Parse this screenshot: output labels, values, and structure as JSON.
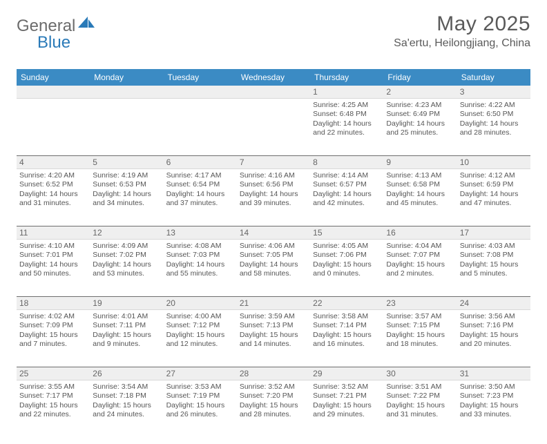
{
  "brand": {
    "general": "General",
    "blue": "Blue"
  },
  "title": "May 2025",
  "location": "Sa'ertu, Heilongjiang, China",
  "colors": {
    "header_bg": "#3b8bc4",
    "header_text": "#ffffff",
    "daynum_bg": "#efefef",
    "text": "#555555",
    "rule": "#6e6e6e"
  },
  "weekdays": [
    "Sunday",
    "Monday",
    "Tuesday",
    "Wednesday",
    "Thursday",
    "Friday",
    "Saturday"
  ],
  "weeks": [
    {
      "nums": [
        "",
        "",
        "",
        "",
        "1",
        "2",
        "3"
      ],
      "cells": [
        null,
        null,
        null,
        null,
        {
          "sunrise": "Sunrise: 4:25 AM",
          "sunset": "Sunset: 6:48 PM",
          "d1": "Daylight: 14 hours",
          "d2": "and 22 minutes."
        },
        {
          "sunrise": "Sunrise: 4:23 AM",
          "sunset": "Sunset: 6:49 PM",
          "d1": "Daylight: 14 hours",
          "d2": "and 25 minutes."
        },
        {
          "sunrise": "Sunrise: 4:22 AM",
          "sunset": "Sunset: 6:50 PM",
          "d1": "Daylight: 14 hours",
          "d2": "and 28 minutes."
        }
      ]
    },
    {
      "nums": [
        "4",
        "5",
        "6",
        "7",
        "8",
        "9",
        "10"
      ],
      "cells": [
        {
          "sunrise": "Sunrise: 4:20 AM",
          "sunset": "Sunset: 6:52 PM",
          "d1": "Daylight: 14 hours",
          "d2": "and 31 minutes."
        },
        {
          "sunrise": "Sunrise: 4:19 AM",
          "sunset": "Sunset: 6:53 PM",
          "d1": "Daylight: 14 hours",
          "d2": "and 34 minutes."
        },
        {
          "sunrise": "Sunrise: 4:17 AM",
          "sunset": "Sunset: 6:54 PM",
          "d1": "Daylight: 14 hours",
          "d2": "and 37 minutes."
        },
        {
          "sunrise": "Sunrise: 4:16 AM",
          "sunset": "Sunset: 6:56 PM",
          "d1": "Daylight: 14 hours",
          "d2": "and 39 minutes."
        },
        {
          "sunrise": "Sunrise: 4:14 AM",
          "sunset": "Sunset: 6:57 PM",
          "d1": "Daylight: 14 hours",
          "d2": "and 42 minutes."
        },
        {
          "sunrise": "Sunrise: 4:13 AM",
          "sunset": "Sunset: 6:58 PM",
          "d1": "Daylight: 14 hours",
          "d2": "and 45 minutes."
        },
        {
          "sunrise": "Sunrise: 4:12 AM",
          "sunset": "Sunset: 6:59 PM",
          "d1": "Daylight: 14 hours",
          "d2": "and 47 minutes."
        }
      ]
    },
    {
      "nums": [
        "11",
        "12",
        "13",
        "14",
        "15",
        "16",
        "17"
      ],
      "cells": [
        {
          "sunrise": "Sunrise: 4:10 AM",
          "sunset": "Sunset: 7:01 PM",
          "d1": "Daylight: 14 hours",
          "d2": "and 50 minutes."
        },
        {
          "sunrise": "Sunrise: 4:09 AM",
          "sunset": "Sunset: 7:02 PM",
          "d1": "Daylight: 14 hours",
          "d2": "and 53 minutes."
        },
        {
          "sunrise": "Sunrise: 4:08 AM",
          "sunset": "Sunset: 7:03 PM",
          "d1": "Daylight: 14 hours",
          "d2": "and 55 minutes."
        },
        {
          "sunrise": "Sunrise: 4:06 AM",
          "sunset": "Sunset: 7:05 PM",
          "d1": "Daylight: 14 hours",
          "d2": "and 58 minutes."
        },
        {
          "sunrise": "Sunrise: 4:05 AM",
          "sunset": "Sunset: 7:06 PM",
          "d1": "Daylight: 15 hours",
          "d2": "and 0 minutes."
        },
        {
          "sunrise": "Sunrise: 4:04 AM",
          "sunset": "Sunset: 7:07 PM",
          "d1": "Daylight: 15 hours",
          "d2": "and 2 minutes."
        },
        {
          "sunrise": "Sunrise: 4:03 AM",
          "sunset": "Sunset: 7:08 PM",
          "d1": "Daylight: 15 hours",
          "d2": "and 5 minutes."
        }
      ]
    },
    {
      "nums": [
        "18",
        "19",
        "20",
        "21",
        "22",
        "23",
        "24"
      ],
      "cells": [
        {
          "sunrise": "Sunrise: 4:02 AM",
          "sunset": "Sunset: 7:09 PM",
          "d1": "Daylight: 15 hours",
          "d2": "and 7 minutes."
        },
        {
          "sunrise": "Sunrise: 4:01 AM",
          "sunset": "Sunset: 7:11 PM",
          "d1": "Daylight: 15 hours",
          "d2": "and 9 minutes."
        },
        {
          "sunrise": "Sunrise: 4:00 AM",
          "sunset": "Sunset: 7:12 PM",
          "d1": "Daylight: 15 hours",
          "d2": "and 12 minutes."
        },
        {
          "sunrise": "Sunrise: 3:59 AM",
          "sunset": "Sunset: 7:13 PM",
          "d1": "Daylight: 15 hours",
          "d2": "and 14 minutes."
        },
        {
          "sunrise": "Sunrise: 3:58 AM",
          "sunset": "Sunset: 7:14 PM",
          "d1": "Daylight: 15 hours",
          "d2": "and 16 minutes."
        },
        {
          "sunrise": "Sunrise: 3:57 AM",
          "sunset": "Sunset: 7:15 PM",
          "d1": "Daylight: 15 hours",
          "d2": "and 18 minutes."
        },
        {
          "sunrise": "Sunrise: 3:56 AM",
          "sunset": "Sunset: 7:16 PM",
          "d1": "Daylight: 15 hours",
          "d2": "and 20 minutes."
        }
      ]
    },
    {
      "nums": [
        "25",
        "26",
        "27",
        "28",
        "29",
        "30",
        "31"
      ],
      "cells": [
        {
          "sunrise": "Sunrise: 3:55 AM",
          "sunset": "Sunset: 7:17 PM",
          "d1": "Daylight: 15 hours",
          "d2": "and 22 minutes."
        },
        {
          "sunrise": "Sunrise: 3:54 AM",
          "sunset": "Sunset: 7:18 PM",
          "d1": "Daylight: 15 hours",
          "d2": "and 24 minutes."
        },
        {
          "sunrise": "Sunrise: 3:53 AM",
          "sunset": "Sunset: 7:19 PM",
          "d1": "Daylight: 15 hours",
          "d2": "and 26 minutes."
        },
        {
          "sunrise": "Sunrise: 3:52 AM",
          "sunset": "Sunset: 7:20 PM",
          "d1": "Daylight: 15 hours",
          "d2": "and 28 minutes."
        },
        {
          "sunrise": "Sunrise: 3:52 AM",
          "sunset": "Sunset: 7:21 PM",
          "d1": "Daylight: 15 hours",
          "d2": "and 29 minutes."
        },
        {
          "sunrise": "Sunrise: 3:51 AM",
          "sunset": "Sunset: 7:22 PM",
          "d1": "Daylight: 15 hours",
          "d2": "and 31 minutes."
        },
        {
          "sunrise": "Sunrise: 3:50 AM",
          "sunset": "Sunset: 7:23 PM",
          "d1": "Daylight: 15 hours",
          "d2": "and 33 minutes."
        }
      ]
    }
  ]
}
